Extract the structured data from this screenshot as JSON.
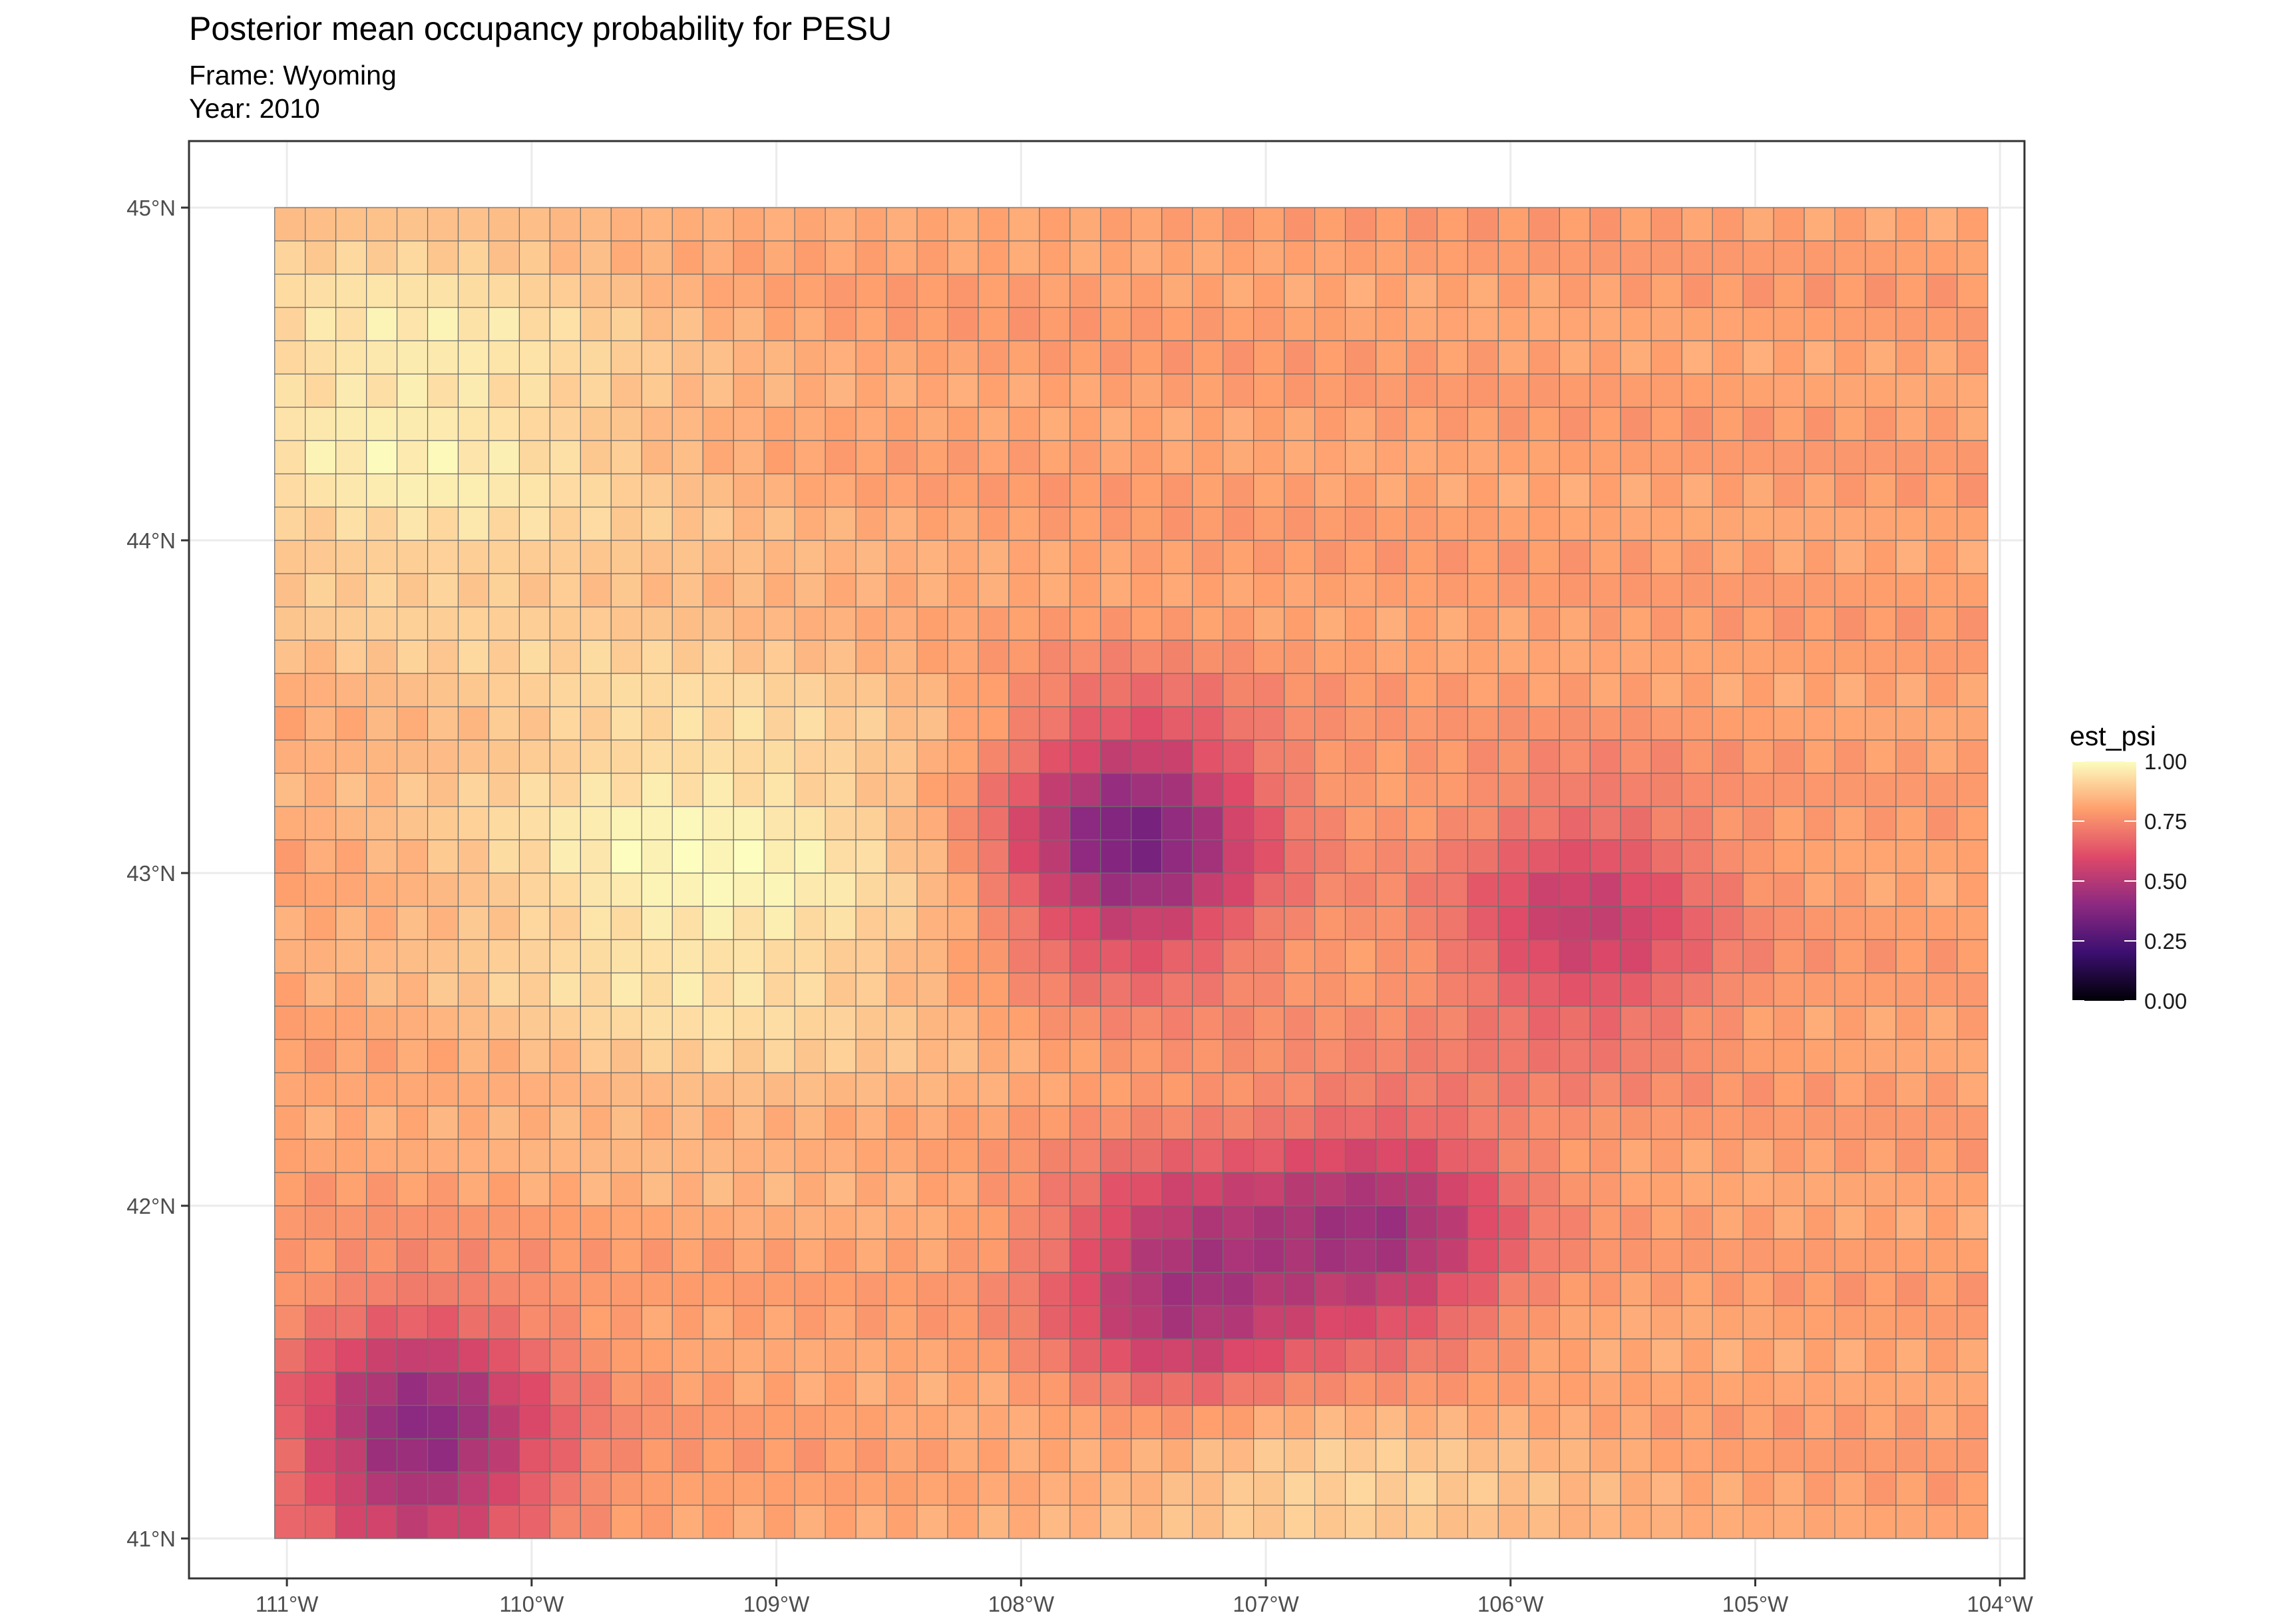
{
  "title": "Posterior mean occupancy probability for PESU",
  "subtitle_lines": [
    "Frame: Wyoming",
    "Year: 2010"
  ],
  "chart_data": {
    "type": "heatmap",
    "title": "Posterior mean occupancy probability for PESU",
    "subtitle": "Frame: Wyoming\nYear: 2010",
    "xlabel": "",
    "ylabel": "",
    "xlim": [
      -111.4,
      -103.9
    ],
    "ylim": [
      40.88,
      45.2
    ],
    "x_ticks": [
      -111,
      -110,
      -109,
      -108,
      -107,
      -106,
      -105,
      -104
    ],
    "x_tick_labels": [
      "111°W",
      "110°W",
      "109°W",
      "108°W",
      "107°W",
      "106°W",
      "105°W",
      "104°W"
    ],
    "y_ticks": [
      41,
      42,
      43,
      44,
      45
    ],
    "y_tick_labels": [
      "41°N",
      "42°N",
      "43°N",
      "44°N",
      "45°N"
    ],
    "grid": true,
    "legend": {
      "title": "est_psi",
      "position": "right",
      "ticks": [
        1.0,
        0.75,
        0.5,
        0.25,
        0.0
      ],
      "tick_labels": [
        "1.00",
        "0.75",
        "0.50",
        "0.25",
        "0.00"
      ],
      "colors": [
        "#000004",
        "#3b0f70",
        "#8c2981",
        "#de4968",
        "#fe9f6d",
        "#fcfdbf"
      ]
    },
    "grid_cells": {
      "cell_size_deg": [
        0.125,
        0.1
      ],
      "lon_range": [
        -111.05,
        -104.05
      ],
      "lat_range": [
        41.0,
        45.0
      ],
      "value_summary": "est_psi per grid cell; ~0.95-1.0 across the northwest, ~0.8-0.9 across the northeast, lows of ~0.35-0.45 near 107.5°W 43.1°N, 110.4°W 41.3°N, 107.4°W 41.8°N and 106.5°W 41.9°N, ~0.55 near 105.7°W 42.9°N",
      "hotspots": [
        {
          "lon": -107.55,
          "lat": 43.1,
          "min_value": 0.35
        },
        {
          "lon": -110.45,
          "lat": 41.3,
          "min_value": 0.4
        },
        {
          "lon": -107.35,
          "lat": 41.75,
          "min_value": 0.42
        },
        {
          "lon": -106.5,
          "lat": 41.9,
          "min_value": 0.45
        },
        {
          "lon": -105.7,
          "lat": 42.85,
          "min_value": 0.55
        }
      ],
      "high_regions": [
        {
          "lon": -110.5,
          "lat": 44.4,
          "value": 0.97
        },
        {
          "lon": -109.3,
          "lat": 43.0,
          "value": 0.98
        },
        {
          "lon": -106.9,
          "lat": 41.15,
          "value": 0.92
        }
      ]
    }
  }
}
